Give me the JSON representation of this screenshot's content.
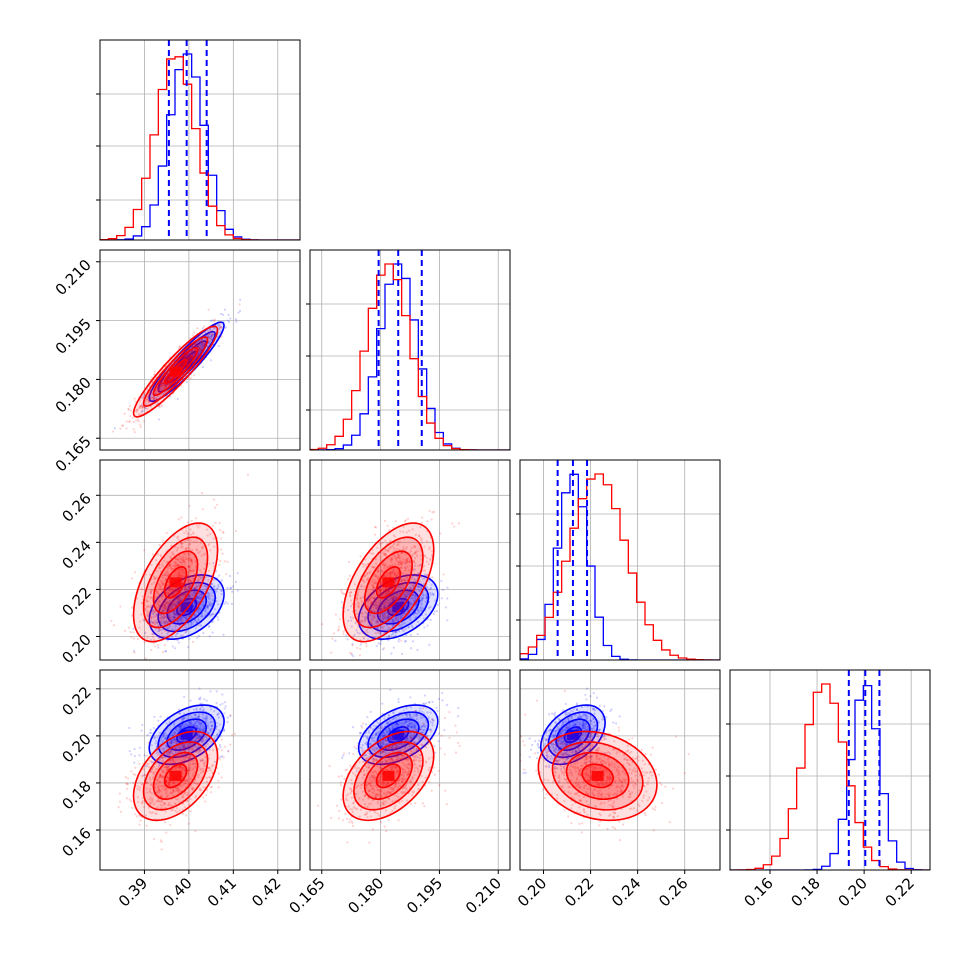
{
  "chart_data": {
    "type": "corner",
    "parameters": [
      {
        "id": "p1",
        "range": [
          0.38,
          0.425
        ],
        "ticks": [
          "0.39",
          "0.40",
          "0.41",
          "0.42"
        ],
        "tick_values": [
          0.39,
          0.4,
          0.41,
          0.42
        ]
      },
      {
        "id": "p2",
        "range": [
          0.162,
          0.213
        ],
        "ticks": [
          "0.165",
          "0.180",
          "0.195",
          "0.210"
        ],
        "tick_values": [
          0.165,
          0.18,
          0.195,
          0.21
        ]
      },
      {
        "id": "p3",
        "range": [
          0.19,
          0.275
        ],
        "ticks": [
          "0.20",
          "0.22",
          "0.24",
          "0.26"
        ],
        "tick_values": [
          0.2,
          0.22,
          0.24,
          0.26
        ]
      },
      {
        "id": "p4",
        "range": [
          0.143,
          0.228
        ],
        "ticks": [
          "0.16",
          "0.18",
          "0.20",
          "0.22"
        ],
        "tick_values": [
          0.16,
          0.18,
          0.2,
          0.22
        ]
      }
    ],
    "series": [
      {
        "color": "#0000ff",
        "mean": [
          0.3995,
          0.1845,
          0.2125,
          0.2005
        ],
        "sd": [
          0.004,
          0.0048,
          0.0065,
          0.006
        ],
        "quantiles": [
          [
            0.3955,
            0.3995,
            0.404
          ],
          [
            0.1795,
            0.1845,
            0.1905
          ],
          [
            0.206,
            0.2125,
            0.2185
          ],
          [
            0.1935,
            0.2005,
            0.2065
          ]
        ]
      },
      {
        "color": "#ff0000",
        "mean": [
          0.397,
          0.182,
          0.223,
          0.183
        ],
        "sd": [
          0.0045,
          0.0055,
          0.012,
          0.009
        ],
        "quantiles": null
      }
    ],
    "correlations": {
      "0_1": [
        0.92,
        0.92
      ],
      "0_2": [
        0.4,
        0.55
      ],
      "1_2": [
        0.4,
        0.55
      ],
      "0_3": [
        0.45,
        0.45
      ],
      "1_3": [
        0.45,
        0.45
      ],
      "2_3": [
        0.4,
        -0.2
      ]
    },
    "grid": true
  }
}
